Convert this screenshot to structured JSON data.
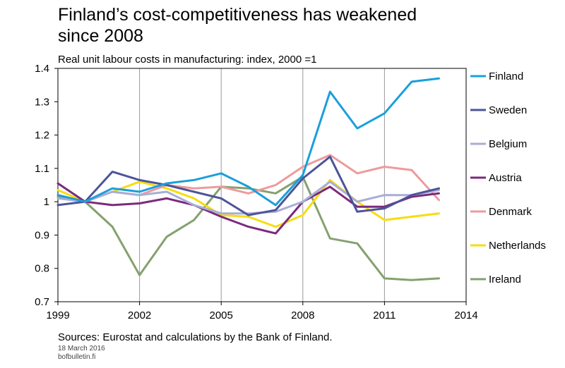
{
  "title_line1": "Finland’s cost-competitiveness has weakened",
  "title_line2": "since 2008",
  "footer": {
    "sources": "Sources: Eurostat and calculations by the Bank of Finland.",
    "date": "18 March 2016",
    "site": "bofbulletin.fi"
  },
  "chart_data": {
    "type": "line",
    "title": "Finland’s cost-competitiveness has weakened since 2008",
    "subtitle": "Real unit labour costs in manufacturing: index, 2000 =1",
    "xlim": [
      1999,
      2014
    ],
    "ylim": [
      0.7,
      1.4
    ],
    "x_ticks": [
      "1999",
      "2002",
      "2005",
      "2008",
      "2011",
      "2014"
    ],
    "x_tick_values": [
      1999,
      2002,
      2005,
      2008,
      2011,
      2014
    ],
    "y_ticks": [
      "0.7",
      "0.8",
      "0.9",
      "1",
      "1.1",
      "1.2",
      "1.3",
      "1.4"
    ],
    "y_tick_values": [
      0.7,
      0.8,
      0.9,
      1.0,
      1.1,
      1.2,
      1.3,
      1.4
    ],
    "grid": true,
    "legend_position": "right",
    "x": [
      1999,
      2000,
      2001,
      2002,
      2003,
      2004,
      2005,
      2006,
      2007,
      2008,
      2009,
      2010,
      2011,
      2012,
      2013
    ],
    "series": [
      {
        "name": "Finland",
        "color": "#1a9fdb",
        "values": [
          1.02,
          1.0,
          1.04,
          1.03,
          1.055,
          1.065,
          1.085,
          1.045,
          0.99,
          1.08,
          1.33,
          1.22,
          1.265,
          1.36,
          1.37
        ]
      },
      {
        "name": "Sweden",
        "color": "#4c5499",
        "values": [
          0.99,
          1.0,
          1.09,
          1.065,
          1.05,
          1.03,
          1.01,
          0.96,
          0.975,
          1.07,
          1.135,
          0.97,
          0.98,
          1.02,
          1.04
        ]
      },
      {
        "name": "Belgium",
        "color": "#a8aed6",
        "values": [
          1.01,
          1.0,
          1.03,
          1.02,
          1.03,
          0.99,
          0.965,
          0.965,
          0.97,
          1.0,
          1.06,
          1.0,
          1.02,
          1.02,
          1.035
        ]
      },
      {
        "name": "Austria",
        "color": "#7b2a7e",
        "values": [
          1.055,
          1.0,
          0.99,
          0.995,
          1.01,
          0.99,
          0.955,
          0.925,
          0.905,
          1.0,
          1.045,
          0.985,
          0.985,
          1.015,
          1.025
        ]
      },
      {
        "name": "Denmark",
        "color": "#ee9a9d",
        "values": [
          1.02,
          1.0,
          1.03,
          1.02,
          1.05,
          1.04,
          1.045,
          1.025,
          1.05,
          1.105,
          1.14,
          1.085,
          1.105,
          1.095,
          1.005
        ]
      },
      {
        "name": "Netherlands",
        "color": "#f7dc0f",
        "values": [
          1.035,
          1.0,
          1.03,
          1.06,
          1.04,
          1.01,
          0.96,
          0.955,
          0.925,
          0.96,
          1.065,
          1.0,
          0.945,
          0.955,
          0.965
        ]
      },
      {
        "name": "Ireland",
        "color": "#84a16e",
        "values": [
          1.015,
          1.0,
          0.925,
          0.78,
          0.895,
          0.945,
          1.045,
          1.04,
          1.025,
          1.075,
          0.89,
          0.875,
          0.77,
          0.765,
          0.77
        ]
      }
    ]
  }
}
